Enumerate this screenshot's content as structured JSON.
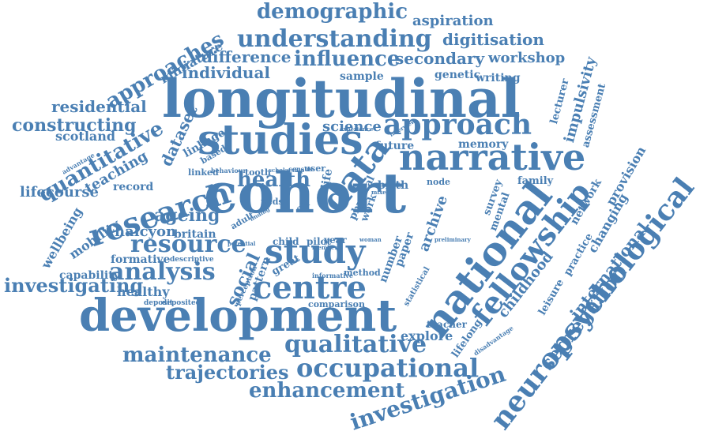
{
  "color": "#4a7fb3",
  "words": [
    {
      "text": "longitudinal",
      "weight": 100
    },
    {
      "text": "cohort",
      "weight": 98
    },
    {
      "text": "development",
      "weight": 80
    },
    {
      "text": "studies",
      "weight": 78
    },
    {
      "text": "national",
      "weight": 70
    },
    {
      "text": "narrative",
      "weight": 66
    },
    {
      "text": "data",
      "weight": 66
    },
    {
      "text": "study",
      "weight": 62
    },
    {
      "text": "centre",
      "weight": 60
    },
    {
      "text": "research",
      "weight": 58
    },
    {
      "text": "fellowship",
      "weight": 56
    },
    {
      "text": "neuropsychological",
      "weight": 54
    },
    {
      "text": "approach",
      "weight": 50
    },
    {
      "text": "occupational",
      "weight": 46
    },
    {
      "text": "understanding",
      "weight": 44
    },
    {
      "text": "analysis",
      "weight": 42
    },
    {
      "text": "resource",
      "weight": 42
    },
    {
      "text": "qualitative",
      "weight": 40
    },
    {
      "text": "investigation",
      "weight": 38
    },
    {
      "text": "maintenance",
      "weight": 36
    },
    {
      "text": "enhancement",
      "weight": 36
    },
    {
      "text": "health",
      "weight": 36
    },
    {
      "text": "influence",
      "weight": 34
    },
    {
      "text": "demographic",
      "weight": 34
    },
    {
      "text": "approaches",
      "weight": 34
    },
    {
      "text": "quantitative",
      "weight": 34
    },
    {
      "text": "segregation",
      "weight": 32
    },
    {
      "text": "investigating",
      "weight": 32
    },
    {
      "text": "trajectories",
      "weight": 32
    },
    {
      "text": "constructing",
      "weight": 30
    },
    {
      "text": "social",
      "weight": 30
    },
    {
      "text": "ageing",
      "weight": 30
    },
    {
      "text": "international",
      "weight": 28
    },
    {
      "text": "difference",
      "weight": 28
    },
    {
      "text": "secondary",
      "weight": 28
    },
    {
      "text": "individual",
      "weight": 28
    },
    {
      "text": "residential",
      "weight": 26
    },
    {
      "text": "dataset",
      "weight": 26
    },
    {
      "text": "digitisation",
      "weight": 26
    },
    {
      "text": "aspiration",
      "weight": 26
    },
    {
      "text": "workshop",
      "weight": 26
    },
    {
      "text": "lifecourse",
      "weight": 26
    },
    {
      "text": "teaching",
      "weight": 26
    },
    {
      "text": "halcyon",
      "weight": 24
    },
    {
      "text": "childhood",
      "weight": 24
    },
    {
      "text": "science",
      "weight": 24
    },
    {
      "text": "impulsivity",
      "weight": 24
    },
    {
      "text": "scotland",
      "weight": 22
    },
    {
      "text": "miniature",
      "weight": 22
    },
    {
      "text": "explore",
      "weight": 22
    },
    {
      "text": "mobility",
      "weight": 22
    },
    {
      "text": "wellbeing",
      "weight": 22
    },
    {
      "text": "archive",
      "weight": 22
    },
    {
      "text": "provision",
      "weight": 22
    },
    {
      "text": "changing",
      "weight": 20
    },
    {
      "text": "healthy",
      "weight": 20
    },
    {
      "text": "capability",
      "weight": 20
    },
    {
      "text": "britain",
      "weight": 20
    },
    {
      "text": "formative",
      "weight": 20
    },
    {
      "text": "memory",
      "weight": 20
    },
    {
      "text": "future",
      "weight": 20
    },
    {
      "text": "sample",
      "weight": 20
    },
    {
      "text": "genetic",
      "weight": 20
    },
    {
      "text": "writing",
      "weight": 20
    },
    {
      "text": "network",
      "weight": 20
    },
    {
      "text": "linkage",
      "weight": 20
    },
    {
      "text": "record",
      "weight": 20
    },
    {
      "text": "birth",
      "weight": 20
    },
    {
      "text": "family",
      "weight": 18
    },
    {
      "text": "lecturer",
      "weight": 18
    },
    {
      "text": "assessment",
      "weight": 18
    },
    {
      "text": "survey",
      "weight": 18
    },
    {
      "text": "mental",
      "weight": 18
    },
    {
      "text": "practice",
      "weight": 18
    },
    {
      "text": "leisure",
      "weight": 18
    },
    {
      "text": "pattern",
      "weight": 18
    },
    {
      "text": "paper",
      "weight": 18
    },
    {
      "text": "number",
      "weight": 18
    },
    {
      "text": "lifelong",
      "weight": 18
    },
    {
      "text": "teacher",
      "weight": 16
    },
    {
      "text": "child",
      "weight": 16
    },
    {
      "text": "pilot",
      "weight": 16
    },
    {
      "text": "year",
      "weight": 16
    },
    {
      "text": "great",
      "weight": 16
    },
    {
      "text": "method",
      "weight": 14
    },
    {
      "text": "comparison",
      "weight": 14
    },
    {
      "text": "linked",
      "weight": 14
    },
    {
      "text": "tooth",
      "weight": 14
    },
    {
      "text": "user",
      "weight": 14
    },
    {
      "text": "based",
      "weight": 14
    },
    {
      "text": "life",
      "weight": 14
    },
    {
      "text": "work",
      "weight": 14
    },
    {
      "text": "node",
      "weight": 14
    },
    {
      "text": "physical",
      "weight": 14
    },
    {
      "text": "adult",
      "weight": 12
    },
    {
      "text": "ncds",
      "weight": 12
    },
    {
      "text": "old",
      "weight": 12
    },
    {
      "text": "statistical",
      "weight": 12
    },
    {
      "text": "descriptive",
      "weight": 12
    },
    {
      "text": "deposit",
      "weight": 12
    },
    {
      "text": "deposited",
      "weight": 12
    },
    {
      "text": "perception",
      "weight": 12
    },
    {
      "text": "disadvantage",
      "weight": 12
    },
    {
      "text": "advantage",
      "weight": 12
    },
    {
      "text": "informative",
      "weight": 12
    },
    {
      "text": "behaviour",
      "weight": 12
    },
    {
      "text": "census",
      "weight": 12
    },
    {
      "text": "scholarship",
      "weight": 10
    },
    {
      "text": "experience",
      "weight": 10
    },
    {
      "text": "interview",
      "weight": 10
    },
    {
      "text": "finding",
      "weight": 10
    },
    {
      "text": "potential",
      "weight": 10
    },
    {
      "text": "preliminary",
      "weight": 10
    },
    {
      "text": "woman",
      "weight": 10
    },
    {
      "text": "member",
      "weight": 10
    },
    {
      "text": "mixed",
      "weight": 10
    }
  ]
}
